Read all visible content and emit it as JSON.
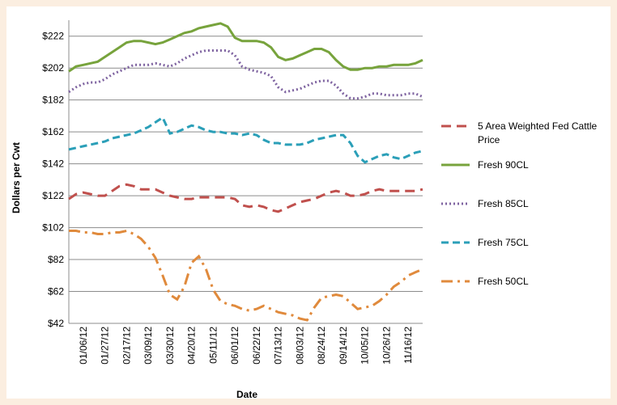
{
  "chart_data": {
    "type": "line",
    "x_label": "Date",
    "y_label": "Dollars per Cwt",
    "categories": [
      null,
      null,
      "01/06/12",
      null,
      null,
      "01/27/12",
      null,
      null,
      "02/17/12",
      null,
      null,
      "03/09/12",
      null,
      null,
      "03/30/12",
      null,
      null,
      "04/20/12",
      null,
      null,
      "05/11/12",
      null,
      null,
      "06/01/12",
      null,
      null,
      "06/22/12",
      null,
      null,
      "07/13/12",
      null,
      null,
      "08/03/12",
      null,
      null,
      "08/24/12",
      null,
      null,
      "09/14/12",
      null,
      null,
      "10/05/12",
      null,
      null,
      "10/26/12",
      null,
      null,
      "11/16/12",
      null,
      null
    ],
    "ylim": [
      42,
      232
    ],
    "yticks": [
      {
        "value": 42,
        "label": "$42"
      },
      {
        "value": 62,
        "label": "$62"
      },
      {
        "value": 82,
        "label": "$82"
      },
      {
        "value": 102,
        "label": "$102"
      },
      {
        "value": 122,
        "label": "$122"
      },
      {
        "value": 142,
        "label": "$142"
      },
      {
        "value": 162,
        "label": "$162"
      },
      {
        "value": 182,
        "label": "$182"
      },
      {
        "value": 202,
        "label": "$202"
      },
      {
        "value": 222,
        "label": "$222"
      }
    ],
    "grid": true,
    "legend": "right",
    "series": [
      {
        "name": "5 Area Weighted Fed Cattle Price",
        "color": "#c0504d",
        "dash": "12,7",
        "values": [
          120,
          123,
          124,
          123,
          122,
          122,
          125,
          128,
          129,
          128,
          126,
          126,
          126,
          124,
          122,
          121,
          120,
          120,
          121,
          121,
          121,
          121,
          121,
          120,
          116,
          115,
          116,
          115,
          113,
          112,
          114,
          116,
          118,
          119,
          120,
          122,
          124,
          125,
          124,
          122,
          122,
          123,
          125,
          126,
          125,
          125,
          125,
          125,
          125,
          126
        ]
      },
      {
        "name": "Fresh 90CL",
        "color": "#77a33c",
        "dash": "none",
        "values": [
          200,
          203,
          204,
          205,
          206,
          209,
          212,
          215,
          218,
          219,
          219,
          218,
          217,
          218,
          220,
          222,
          224,
          225,
          227,
          228,
          229,
          230,
          228,
          221,
          219,
          219,
          219,
          218,
          215,
          209,
          207,
          208,
          210,
          212,
          214,
          214,
          212,
          207,
          203,
          201,
          201,
          202,
          202,
          203,
          203,
          204,
          204,
          204,
          205,
          207
        ]
      },
      {
        "name": "Fresh 85CL",
        "color": "#7e63a0",
        "dash": "2,3",
        "values": [
          187,
          190,
          192,
          193,
          193,
          195,
          198,
          200,
          202,
          204,
          204,
          204,
          205,
          204,
          203,
          205,
          208,
          210,
          212,
          213,
          213,
          213,
          213,
          210,
          203,
          201,
          200,
          199,
          197,
          190,
          187,
          188,
          189,
          191,
          193,
          194,
          194,
          191,
          186,
          183,
          183,
          184,
          186,
          186,
          185,
          185,
          185,
          186,
          186,
          184
        ]
      },
      {
        "name": "Fresh 75CL",
        "color": "#2b9fb8",
        "dash": "9,5",
        "values": [
          151,
          152,
          153,
          154,
          155,
          156,
          158,
          159,
          160,
          161,
          163,
          165,
          168,
          171,
          161,
          162,
          164,
          166,
          165,
          163,
          162,
          162,
          161,
          161,
          160,
          161,
          160,
          157,
          155,
          155,
          154,
          154,
          154,
          155,
          157,
          158,
          159,
          160,
          160,
          155,
          147,
          143,
          145,
          147,
          148,
          146,
          145,
          147,
          149,
          150
        ]
      },
      {
        "name": "Fresh 50CL",
        "color": "#e08a3c",
        "dash": "14,6,3,6",
        "values": [
          100,
          100,
          99,
          99,
          98,
          98,
          99,
          99,
          100,
          98,
          95,
          90,
          83,
          72,
          60,
          57,
          65,
          80,
          84,
          76,
          63,
          56,
          54,
          53,
          51,
          50,
          51,
          53,
          51,
          49,
          48,
          47,
          45,
          44,
          52,
          58,
          59,
          60,
          59,
          55,
          51,
          52,
          53,
          56,
          60,
          65,
          68,
          72,
          74,
          76
        ]
      }
    ]
  }
}
